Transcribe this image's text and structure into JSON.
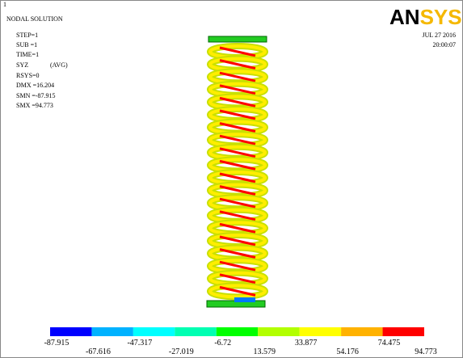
{
  "viewport_number": "1",
  "title": "NODAL SOLUTION",
  "info": [
    "STEP=1",
    "SUB =1",
    "TIME=1",
    "SYZ",
    "(AVG)",
    "RSYS=0",
    "DMX =16.204",
    "SMN =-87.915",
    "SMX =94.773"
  ],
  "logo": {
    "main": "AN",
    "accent": "SYS"
  },
  "date": "JUL 27 2016",
  "time": "20:00:07",
  "legend": {
    "colors": [
      "#0000ff",
      "#00b2ff",
      "#00ffff",
      "#00ffb2",
      "#00ff00",
      "#b2ff00",
      "#ffff00",
      "#ffb200",
      "#ff0000"
    ],
    "labels": [
      "-87.915",
      "-67.616",
      "-47.317",
      "-27.019",
      "-6.72",
      "13.579",
      "33.877",
      "54.176",
      "74.475",
      "94.773"
    ]
  }
}
